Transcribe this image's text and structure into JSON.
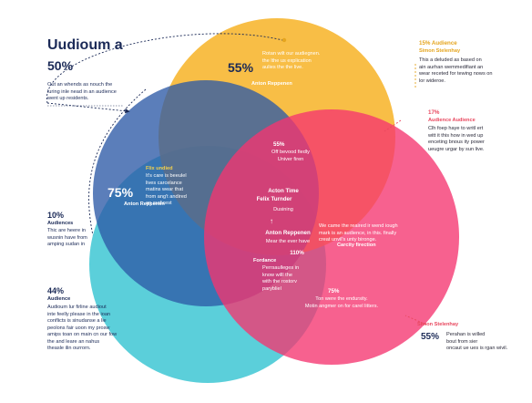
{
  "colors": {
    "yellow": "#f7b52c",
    "pink": "#f5346f",
    "blue": "#3d6fb1",
    "teal": "#3ec7d3",
    "navy": "#1b2a57",
    "accent_gold": "#e5a51f",
    "accent_red": "#e8475e"
  },
  "header": {
    "title_line1": "Uudioum a",
    "title_line2": "50%",
    "intro": [
      "Out an whends as nouch the",
      "luring inle nead in an audience",
      "went up residents."
    ]
  },
  "left": {
    "a": {
      "pct": "10%",
      "label": "Audiences",
      "body": [
        "Thic are heere in",
        "wusnin have from",
        "amping sudan in"
      ]
    },
    "b": {
      "pct": "44%",
      "label": "Audience",
      "body": [
        "Audioum lur firline audiout",
        "inte feelly please in the ioan",
        "conflicts is sinudanse a lie",
        "peolons fair uoon my prosw",
        "amips toan on main cn our fow",
        "the and leare an nahus",
        "theasle ilin ourrorn."
      ]
    }
  },
  "right": {
    "a": {
      "pct": "15% Audience",
      "sub": "Simon Stelenhay",
      "body": [
        "This a deluded as based on",
        "ain aurhan wemmedifiant an",
        "wear receted for tewing nows on",
        "lor wideroe."
      ]
    },
    "b": {
      "pct": "17%",
      "label": "Audience Audience",
      "body": [
        "Clh foep haye to writl ert",
        "witt it this how in wed up",
        "enceting bnous ity power",
        "ueugre urgar by sun live."
      ]
    },
    "c": {
      "name": "Simon Stelenhay",
      "pct": "55%",
      "body": [
        "Perahan is willed",
        "bout from sier",
        "oncaut ue ues is rgan wivil."
      ]
    }
  },
  "yellow": {
    "pct": "55%",
    "body": [
      "Rotan wilt our audiegnen.",
      "the lthe us explication",
      "aulies the the live."
    ],
    "name": "Anton Reppenen"
  },
  "blue": {
    "pct": "75%",
    "name": "Anton Reppenen",
    "title": "Flix undied",
    "body": [
      "It's care is beeulel",
      "lives carcelance",
      "matins wear that",
      "from ang't andired",
      "an audicest"
    ]
  },
  "center": {
    "a": {
      "pct": "55%",
      "body": [
        "Off bevood fiedly",
        "Univer firen"
      ]
    },
    "b": {
      "line1": "Acton Time",
      "line2": "Felix Turnder",
      "sub": "Dusining"
    },
    "arrow": "↑",
    "c": {
      "name": "Anton Reppenen",
      "sub": "Mear the ever have"
    },
    "d": {
      "pct": "110%",
      "label": "Fordance",
      "body": [
        "Perrsaulleges in",
        "know willl the",
        "with the rostorv",
        "parybliel"
      ]
    }
  },
  "pink": {
    "a": {
      "body": [
        "We came the reaired ir wend iough",
        "mark is an audience, in this. finally",
        "creat unvil's unty bironge."
      ],
      "sub": "Carcity firection"
    },
    "b": {
      "pct": "75%",
      "body": [
        "Ton were the endursity.",
        "Motin angmer on for carel litters."
      ]
    }
  }
}
